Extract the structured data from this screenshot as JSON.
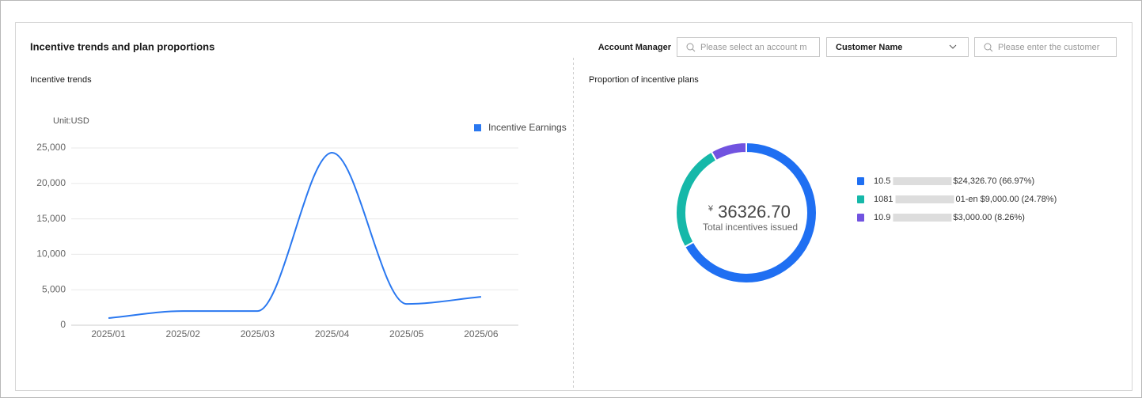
{
  "header": {
    "title": "Incentive trends and plan proportions"
  },
  "filters": {
    "account_manager_label": "Account Manager",
    "account_manager_placeholder": "Please select an account m",
    "customer_select": "Customer Name",
    "customer_placeholder": "Please enter the customer"
  },
  "chart_data": [
    {
      "type": "line",
      "title": "Incentive trends",
      "unit": "Unit:USD",
      "categories": [
        "2025/01",
        "2025/02",
        "2025/03",
        "2025/04",
        "2025/05",
        "2025/06"
      ],
      "series": [
        {
          "name": "Incentive Earnings",
          "color": "#2a78f0",
          "values": [
            1000,
            2000,
            2000,
            24326.7,
            3000,
            4000
          ]
        }
      ],
      "ylim": [
        0,
        25000
      ],
      "yticks": [
        0,
        {
          "value": 5000,
          "label": "5,000"
        },
        {
          "value": 10000,
          "label": "10,000"
        },
        {
          "value": 15000,
          "label": "15,000"
        },
        {
          "value": 20000,
          "label": "20,000"
        },
        {
          "value": 25000,
          "label": "25,000"
        }
      ],
      "grid": true,
      "legend": "top-right"
    },
    {
      "type": "donut",
      "title": "Proportion of incentive plans",
      "center_prefix": "¥",
      "center_value": "36326.70",
      "center_label": "Total incentives issued",
      "categories": [
        "10.5",
        "1081",
        "10.9"
      ],
      "category_suffixes": [
        null,
        "01-en",
        null
      ],
      "values": [
        24326.7,
        9000,
        3000
      ],
      "value_labels": [
        "$24,326.70 (66.97%)",
        "$9,000.00 (24.78%)",
        "$3,000.00 (8.26%)"
      ],
      "colors": [
        "#1f6ff2",
        "#16b8a9",
        "#7153e0"
      ],
      "legend": "right"
    }
  ]
}
